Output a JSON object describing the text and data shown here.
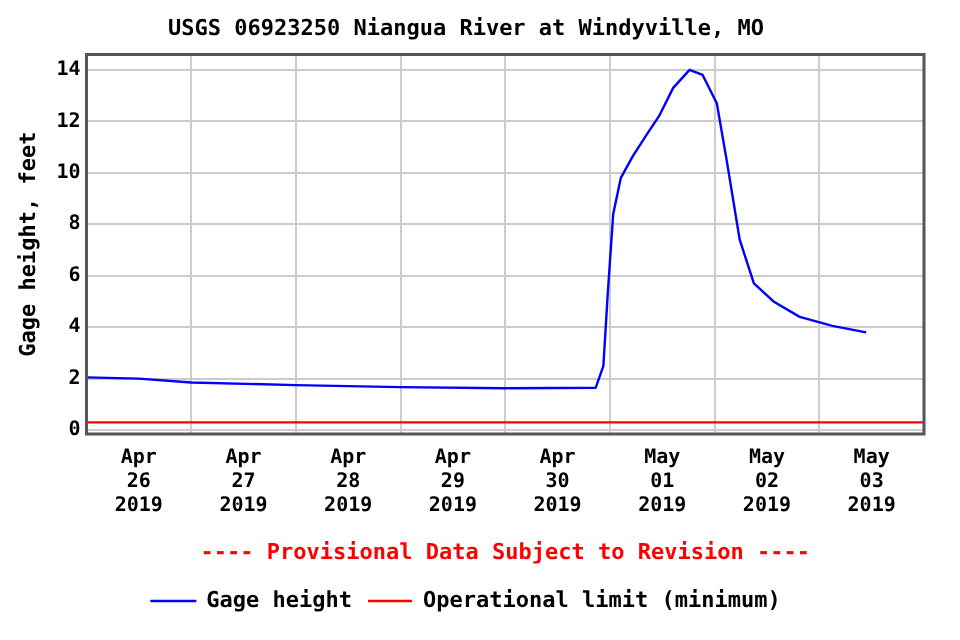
{
  "chart_data": {
    "type": "line",
    "title": "USGS 06923250 Niangua River at Windyville, MO",
    "ylabel": "Gage height, feet",
    "annotations": [
      "---- Provisional Data Subject to Revision ----"
    ],
    "series": [
      {
        "name": "Gage height",
        "color": "#0000ff",
        "x": [
          "2019-04-26T00:00",
          "2019-04-26T12:00",
          "2019-04-27T00:00",
          "2019-04-28T00:00",
          "2019-04-29T00:00",
          "2019-04-30T00:00",
          "2019-04-30T20:45",
          "2019-04-30T22:30",
          "2019-04-30T23:30",
          "2019-05-01T00:45",
          "2019-05-01T02:30",
          "2019-05-01T05:15",
          "2019-05-01T08:30",
          "2019-05-01T11:15",
          "2019-05-01T14:30",
          "2019-05-01T18:15",
          "2019-05-01T21:15",
          "2019-05-02T00:30",
          "2019-05-02T02:45",
          "2019-05-02T05:45",
          "2019-05-02T09:00",
          "2019-05-02T13:30",
          "2019-05-02T19:30",
          "2019-05-03T03:00",
          "2019-05-03T10:45"
        ],
        "values": [
          2.05,
          2.0,
          1.85,
          1.75,
          1.67,
          1.63,
          1.65,
          2.5,
          5.3,
          8.4,
          9.8,
          10.65,
          11.5,
          12.2,
          13.3,
          14.0,
          13.8,
          12.7,
          10.5,
          7.4,
          5.7,
          5.0,
          4.4,
          4.05,
          3.8
        ]
      }
    ],
    "ref_lines": [
      {
        "axis": "y",
        "value": 0.3,
        "label": "Operational limit (minimum)",
        "color": "#ff0000"
      }
    ],
    "xlim": [
      "2019-04-26T00:00",
      "2019-05-04T00:00"
    ],
    "xticks": [
      {
        "value": "2019-04-26T00:00",
        "label": null
      },
      {
        "value": "2019-04-26T12:00",
        "label": "Apr\n26\n2019"
      },
      {
        "value": "2019-04-27T00:00",
        "label": null
      },
      {
        "value": "2019-04-27T12:00",
        "label": "Apr\n27\n2019"
      },
      {
        "value": "2019-04-28T00:00",
        "label": null
      },
      {
        "value": "2019-04-28T12:00",
        "label": "Apr\n28\n2019"
      },
      {
        "value": "2019-04-29T00:00",
        "label": null
      },
      {
        "value": "2019-04-29T12:00",
        "label": "Apr\n29\n2019"
      },
      {
        "value": "2019-04-30T00:00",
        "label": null
      },
      {
        "value": "2019-04-30T12:00",
        "label": "Apr\n30\n2019"
      },
      {
        "value": "2019-05-01T00:00",
        "label": null
      },
      {
        "value": "2019-05-01T12:00",
        "label": "May\n01\n2019"
      },
      {
        "value": "2019-05-02T00:00",
        "label": null
      },
      {
        "value": "2019-05-02T12:00",
        "label": "May\n02\n2019"
      },
      {
        "value": "2019-05-03T00:00",
        "label": null
      },
      {
        "value": "2019-05-03T12:00",
        "label": "May\n03\n2019"
      },
      {
        "value": "2019-05-04T00:00",
        "label": null
      }
    ],
    "ylim": [
      -0.15,
      14.6
    ],
    "yticks": [
      0,
      2,
      4,
      6,
      8,
      10,
      12,
      14
    ],
    "grid": true,
    "legend": "bottom",
    "marker": "none",
    "line_style": "solid"
  }
}
